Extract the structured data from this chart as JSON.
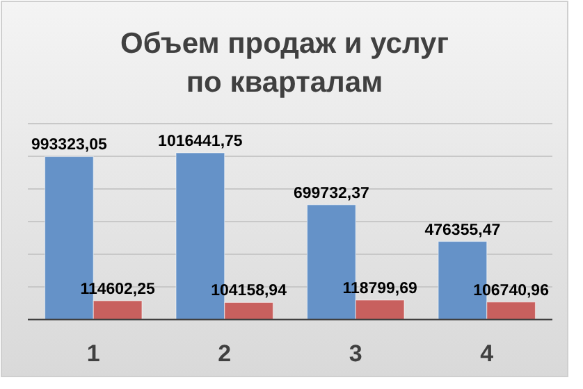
{
  "chart_data": {
    "type": "bar",
    "title": "Объем продаж и услуг\nпо кварталам",
    "categories": [
      "1",
      "2",
      "3",
      "4"
    ],
    "series": [
      {
        "color": "#6592c8",
        "values": [
          993323.05,
          1016441.75,
          699732.37,
          476355.47
        ],
        "value_labels": [
          "993323,05",
          "1016441,75",
          "699732,37",
          "476355,47"
        ]
      },
      {
        "color": "#c8605e",
        "values": [
          114602.25,
          104158.94,
          118799.69,
          106740.96
        ],
        "value_labels": [
          "114602,25",
          "104158,94",
          "118799,69",
          "106740,96"
        ]
      }
    ],
    "tick_labels": "x",
    "grid": "y"
  }
}
